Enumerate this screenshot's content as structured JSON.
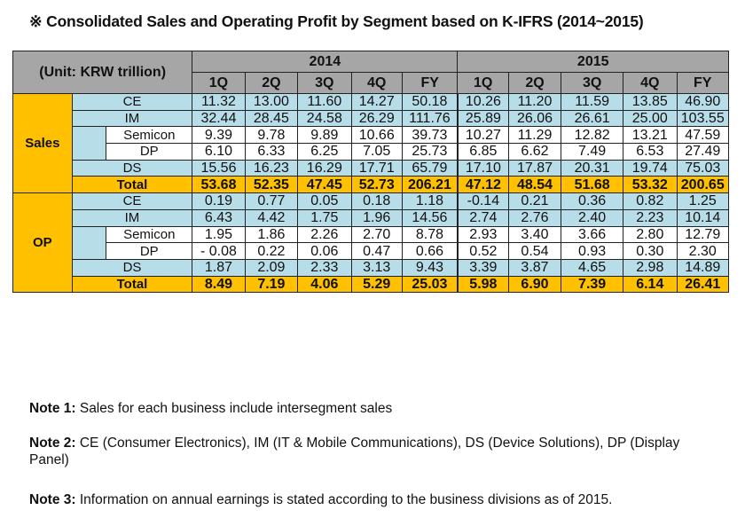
{
  "title": "※ Consolidated Sales and Operating Profit by Segment based on K-IFRS (2014~2015)",
  "table": {
    "unit_label": "(Unit: KRW trillion)",
    "years": [
      "2014",
      "2015"
    ],
    "period_headers": [
      "1Q",
      "2Q",
      "3Q",
      "4Q",
      "FY",
      "1Q",
      "2Q",
      "3Q",
      "4Q",
      "FY"
    ],
    "sections": [
      {
        "name": "Sales",
        "rows": [
          {
            "label": "CE",
            "values": [
              "11.32",
              "13.00",
              "11.60",
              "14.27",
              "50.18",
              "10.26",
              "11.20",
              "11.59",
              "13.85",
              "46.90"
            ]
          },
          {
            "label": "IM",
            "values": [
              "32.44",
              "28.45",
              "24.58",
              "26.29",
              "111.76",
              "25.89",
              "26.06",
              "26.61",
              "25.00",
              "103.55"
            ]
          },
          {
            "label": "Semicon",
            "values": [
              "9.39",
              "9.78",
              "9.89",
              "10.66",
              "39.73",
              "10.27",
              "11.29",
              "12.82",
              "13.21",
              "47.59"
            ]
          },
          {
            "label": "DP",
            "values": [
              "6.10",
              "6.33",
              "6.25",
              "7.05",
              "25.73",
              "6.85",
              "6.62",
              "7.49",
              "6.53",
              "27.49"
            ]
          },
          {
            "label": "DS",
            "values": [
              "15.56",
              "16.23",
              "16.29",
              "17.71",
              "65.79",
              "17.10",
              "17.87",
              "20.31",
              "19.74",
              "75.03"
            ]
          },
          {
            "label": "Total",
            "values": [
              "53.68",
              "52.35",
              "47.45",
              "52.73",
              "206.21",
              "47.12",
              "48.54",
              "51.68",
              "53.32",
              "200.65"
            ]
          }
        ]
      },
      {
        "name": "OP",
        "rows": [
          {
            "label": "CE",
            "values": [
              "0.19",
              "0.77",
              "0.05",
              "0.18",
              "1.18",
              "-0.14",
              "0.21",
              "0.36",
              "0.82",
              "1.25"
            ]
          },
          {
            "label": "IM",
            "values": [
              "6.43",
              "4.42",
              "1.75",
              "1.96",
              "14.56",
              "2.74",
              "2.76",
              "2.40",
              "2.23",
              "10.14"
            ]
          },
          {
            "label": "Semicon",
            "values": [
              "1.95",
              "1.86",
              "2.26",
              "2.70",
              "8.78",
              "2.93",
              "3.40",
              "3.66",
              "2.80",
              "12.79"
            ]
          },
          {
            "label": "DP",
            "values": [
              "- 0.08",
              "0.22",
              "0.06",
              "0.47",
              "0.66",
              "0.52",
              "0.54",
              "0.93",
              "0.30",
              "2.30"
            ]
          },
          {
            "label": "DS",
            "values": [
              "1.87",
              "2.09",
              "2.33",
              "3.13",
              "9.43",
              "3.39",
              "3.87",
              "4.65",
              "2.98",
              "14.89"
            ]
          },
          {
            "label": "Total",
            "values": [
              "8.49",
              "7.19",
              "4.06",
              "5.29",
              "25.03",
              "5.98",
              "6.90",
              "7.39",
              "6.14",
              "26.41"
            ]
          }
        ]
      }
    ]
  },
  "notes": [
    {
      "label": "Note 1:",
      "text": " Sales for each business include intersegment sales"
    },
    {
      "label": "Note 2:",
      "text": " CE (Consumer Electronics), IM (IT & Mobile Communications), DS (Device Solutions), DP (Display Panel)"
    },
    {
      "label": "Note 3:",
      "text": " Information on annual earnings is stated according to the business divisions as of 2015."
    }
  ],
  "colors": {
    "header_gray": "#a6a6a6",
    "row_blue": "#b7dde8",
    "total_orange": "#ffc000"
  }
}
